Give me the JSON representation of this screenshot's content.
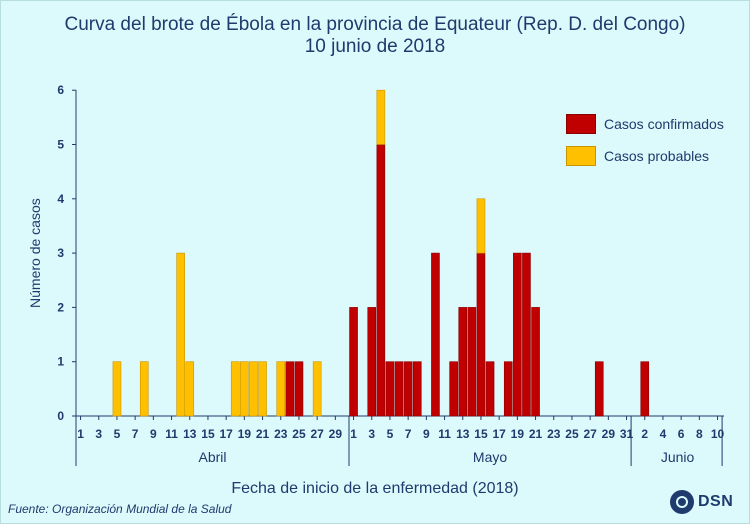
{
  "chart_data": {
    "type": "bar",
    "stacked": true,
    "title": "Curva del brote de Ébola en la provincia de Equateur (Rep. D. del Congo)",
    "subtitle": "10 junio de 2018",
    "xlabel": "Fecha de inicio de la enfermedad (2018)",
    "ylabel": "Número de casos",
    "ylim": [
      0,
      6
    ],
    "yticks": [
      "0",
      "1",
      "2",
      "3",
      "4",
      "5",
      "6"
    ],
    "legend_position": "top-right",
    "grid": false,
    "x_tick_labels": [
      "1",
      "3",
      "5",
      "7",
      "9",
      "11",
      "13",
      "15",
      "17",
      "19",
      "21",
      "23",
      "25",
      "27",
      "29",
      "1",
      "3",
      "5",
      "7",
      "9",
      "11",
      "13",
      "15",
      "17",
      "19",
      "21",
      "23",
      "25",
      "27",
      "29",
      "31",
      "2",
      "4",
      "6",
      "8",
      "10"
    ],
    "months": [
      "Abril",
      "Mayo",
      "Junio"
    ],
    "categories": [
      "Abr 5",
      "Abr 8",
      "Abr 12",
      "Abr 13",
      "Abr 18",
      "Abr 19",
      "Abr 20",
      "Abr 21",
      "Abr 23",
      "Abr 24",
      "Abr 25",
      "Abr 27",
      "May 1",
      "May 3",
      "May 4",
      "May 5",
      "May 6",
      "May 7",
      "May 8",
      "May 10",
      "May 12",
      "May 13",
      "May 14",
      "May 15",
      "May 16",
      "May 18",
      "May 19",
      "May 20",
      "May 21",
      "May 28",
      "Jun 2"
    ],
    "series": [
      {
        "name": "Casos confirmados",
        "color": "#c00000",
        "values": [
          0,
          0,
          0,
          0,
          0,
          0,
          0,
          0,
          0,
          1,
          1,
          0,
          2,
          2,
          5,
          1,
          1,
          1,
          1,
          3,
          1,
          2,
          2,
          3,
          1,
          1,
          3,
          3,
          2,
          1,
          1
        ]
      },
      {
        "name": "Casos probables",
        "color": "#ffc000",
        "values": [
          1,
          1,
          3,
          1,
          1,
          1,
          1,
          1,
          1,
          0,
          0,
          1,
          0,
          0,
          1,
          0,
          0,
          0,
          0,
          0,
          0,
          0,
          0,
          1,
          0,
          0,
          0,
          0,
          0,
          0,
          0
        ]
      }
    ]
  },
  "colors": {
    "background": "#dcf9fb",
    "text": "#1f3a6d",
    "confirmed": "#c00000",
    "probable": "#ffc000"
  },
  "footer": {
    "source": "Fuente: Organización Mundial de la Salud",
    "logo": "DSN"
  }
}
